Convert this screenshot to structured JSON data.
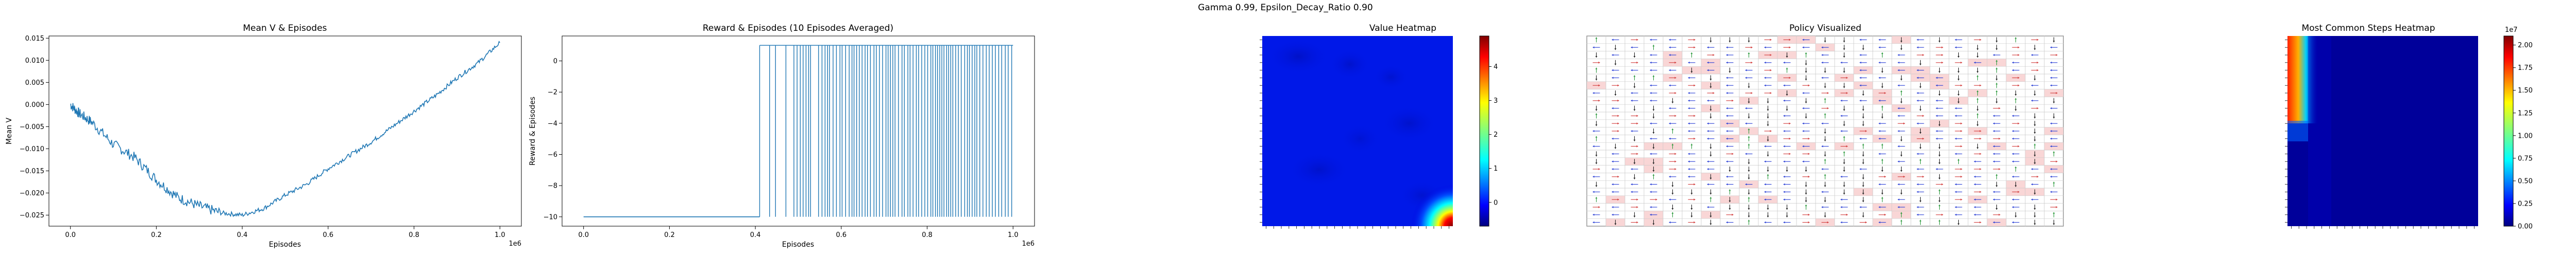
{
  "figure": {
    "suptitle": "Gamma  0.99, Epsilon_Decay_Ratio 0.90"
  },
  "chart_data": [
    {
      "type": "line",
      "title": "Mean V & Episodes",
      "xlabel": "Episodes",
      "ylabel": "Mean V",
      "x_multiplier_label": "1e6",
      "xlim": [
        -0.05,
        1.05
      ],
      "ylim": [
        -0.0275,
        0.0155
      ],
      "xticks": [
        0.0,
        0.2,
        0.4,
        0.6,
        0.8,
        1.0
      ],
      "xtick_labels": [
        "0.0",
        "0.2",
        "0.4",
        "0.6",
        "0.8",
        "1.0"
      ],
      "yticks": [
        -0.025,
        -0.02,
        -0.015,
        -0.01,
        -0.005,
        0.0,
        0.005,
        0.01,
        0.015
      ],
      "ytick_labels": [
        "−0.025",
        "−0.020",
        "−0.015",
        "−0.010",
        "−0.005",
        "0.000",
        "0.005",
        "0.010",
        "0.015"
      ],
      "color": "#1f77b4",
      "x": [
        0.0,
        0.02,
        0.05,
        0.1,
        0.15,
        0.2,
        0.25,
        0.3,
        0.35,
        0.4,
        0.45,
        0.5,
        0.55,
        0.6,
        0.65,
        0.7,
        0.75,
        0.8,
        0.85,
        0.9,
        0.95,
        1.0
      ],
      "y": [
        0.0,
        -0.002,
        -0.004,
        -0.009,
        -0.012,
        -0.017,
        -0.021,
        -0.023,
        -0.0245,
        -0.025,
        -0.0235,
        -0.0205,
        -0.018,
        -0.0145,
        -0.0115,
        -0.0085,
        -0.005,
        -0.0015,
        0.002,
        0.006,
        0.0095,
        0.014
      ]
    },
    {
      "type": "line",
      "title": "Reward & Episodes (10 Episodes Averaged)",
      "xlabel": "Episodes",
      "ylabel": "Reward & Episodes",
      "x_multiplier_label": "1e6",
      "xlim": [
        -0.05,
        1.05
      ],
      "ylim": [
        -10.6,
        1.6
      ],
      "xticks": [
        0.0,
        0.2,
        0.4,
        0.6,
        0.8,
        1.0
      ],
      "xtick_labels": [
        "0.0",
        "0.2",
        "0.4",
        "0.6",
        "0.8",
        "1.0"
      ],
      "yticks": [
        -10,
        -8,
        -6,
        -4,
        -2,
        0
      ],
      "ytick_labels": [
        "−10",
        "−8",
        "−6",
        "−4",
        "−2",
        "0"
      ],
      "color": "#1f77b4",
      "baseline": -10,
      "baseline_until": 0.41,
      "spike_value": 1,
      "spike_region": [
        0.41,
        1.0
      ]
    },
    {
      "type": "heatmap",
      "title": "Value Heatmap",
      "colormap": "jet",
      "colorbar_ticks": [
        0,
        1,
        2,
        3,
        4
      ],
      "colorbar_range": [
        -0.7,
        4.9
      ],
      "note_values": "mostly near 0 (blue) with a high-value corner at bottom-right"
    },
    {
      "type": "heatmap",
      "title": "Policy Visualized",
      "grid": "25x25 arrow grid"
    },
    {
      "type": "heatmap",
      "title": "Most Common Steps Heatmap",
      "colormap": "jet",
      "colorbar_ticks": [
        0.0,
        0.25,
        0.5,
        0.75,
        1.0,
        1.25,
        1.5,
        1.75,
        2.0
      ],
      "colorbar_tick_labels": [
        "0.00",
        "0.25",
        "0.50",
        "0.75",
        "1.00",
        "1.25",
        "1.50",
        "1.75",
        "2.00"
      ],
      "colorbar_multiplier_label": "1e7",
      "colorbar_range": [
        0,
        2.1
      ]
    }
  ]
}
